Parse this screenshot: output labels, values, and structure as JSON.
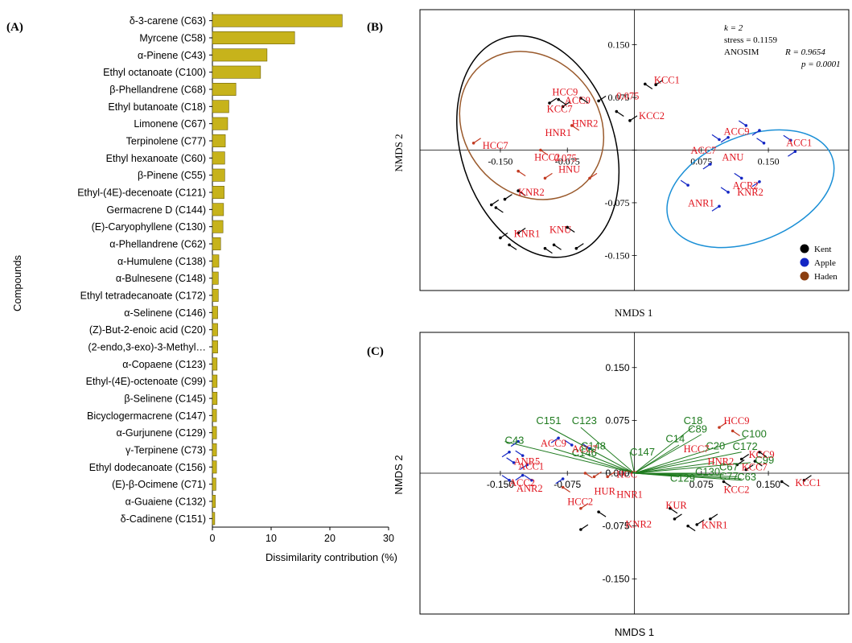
{
  "panels": {
    "a_label": "(A)",
    "b_label": "(B)",
    "c_label": "(C)"
  },
  "chart_data": [
    {
      "panel": "A",
      "type": "bar",
      "orientation": "horizontal",
      "ylabel": "Compounds",
      "xlabel": "Dissimilarity contribution (%)",
      "xlim": [
        0,
        30
      ],
      "xticks": [
        "0",
        "10",
        "20",
        "30"
      ],
      "bar_color": "#c7b31b",
      "categories": [
        "δ-3-carene (C63)",
        "Myrcene (C58)",
        "α-Pinene (C43)",
        "Ethyl octanoate (C100)",
        "β-Phellandrene (C68)",
        "Ethyl butanoate (C18)",
        "Limonene (C67)",
        "Terpinolene (C77)",
        "Ethyl hexanoate (C60)",
        "β-Pinene (C55)",
        "Ethyl-(4E)-decenoate (C121)",
        "Germacrene D (C144)",
        "(E)-Caryophyllene (C130)",
        "α-Phellandrene (C62)",
        "α-Humulene (C138)",
        "α-Bulnesene (C148)",
        "Ethyl tetradecanoate (C172)",
        "α-Selinene (C146)",
        "(Z)-But-2-enoic acid (C20)",
        "(2-endo,3-exo)-3-Methyl…",
        "α-Copaene (C123)",
        "Ethyl-(4E)-octenoate (C99)",
        "β-Selinene (C145)",
        "Bicyclogermacrene (C147)",
        "α-Gurjunene (C129)",
        "γ-Terpinene (C73)",
        "Ethyl dodecanoate (C156)",
        "(E)-β-Ocimene (C71)",
        "α-Guaiene (C132)",
        "δ-Cadinene (C151)"
      ],
      "values": [
        22.1,
        14.0,
        9.3,
        8.2,
        4.0,
        2.8,
        2.6,
        2.2,
        2.1,
        2.1,
        2.0,
        1.9,
        1.8,
        1.4,
        1.1,
        1.0,
        1.0,
        0.9,
        0.9,
        0.9,
        0.8,
        0.8,
        0.8,
        0.7,
        0.7,
        0.7,
        0.7,
        0.6,
        0.5,
        0.4
      ]
    },
    {
      "panel": "B",
      "type": "scatter",
      "xlabel": "NMDS 1",
      "ylabel": "NMDS 2",
      "xlim": [
        -0.24,
        0.24
      ],
      "ylim": [
        -0.2,
        0.2
      ],
      "xticks": [
        {
          "v": -0.15,
          "t": "-0.150"
        },
        {
          "v": -0.075,
          "t": "-0.075"
        },
        {
          "v": 0.075,
          "t": "0.075"
        },
        {
          "v": 0.15,
          "t": "0.150"
        }
      ],
      "yticks": [
        {
          "v": 0.15,
          "t": "0.150"
        },
        {
          "v": 0.075,
          "t": "0.075"
        },
        {
          "v": 0.0,
          "t": "0.000"
        },
        {
          "v": -0.075,
          "t": "-0.075"
        },
        {
          "v": -0.15,
          "t": "-0.150"
        }
      ],
      "stats": {
        "k": "k = 2",
        "stress": "stress = 0.1159",
        "anosim": "ANOSIM",
        "r": "R = 0.9654",
        "p": "p = 0.0001"
      },
      "legend": {
        "placement": "bottom-right",
        "items": [
          {
            "label": "Kent",
            "color": "#000000"
          },
          {
            "label": "Apple",
            "color": "#1326c4"
          },
          {
            "label": "Haden",
            "color": "#8b3e0f"
          }
        ]
      },
      "ellipses": [
        {
          "group": "Kent",
          "color": "#000000",
          "cx": -0.108,
          "cy": 0.005,
          "rx": 0.086,
          "ry": 0.162,
          "rot": -18
        },
        {
          "group": "Haden",
          "color": "#9a5a2c",
          "cx": -0.115,
          "cy": 0.035,
          "rx": 0.075,
          "ry": 0.112,
          "rot": -40
        },
        {
          "group": "Apple",
          "color": "#1a8fd6",
          "cx": 0.13,
          "cy": -0.055,
          "rx": 0.098,
          "ry": 0.075,
          "rot": -22
        }
      ],
      "groups": [
        {
          "group": "Kent",
          "color": "#000000",
          "points": [
            [
              -0.095,
              0.067
            ],
            [
              -0.085,
              0.072
            ],
            [
              -0.08,
              0.062
            ],
            [
              -0.06,
              0.074
            ],
            [
              -0.04,
              0.07
            ],
            [
              -0.02,
              0.055
            ],
            [
              -0.005,
              0.042
            ],
            [
              0.012,
              0.094
            ],
            [
              0.024,
              0.093
            ],
            [
              -0.155,
              -0.082
            ],
            [
              -0.145,
              -0.07
            ],
            [
              -0.13,
              -0.058
            ],
            [
              -0.16,
              -0.078
            ],
            [
              -0.09,
              -0.135
            ],
            [
              -0.065,
              -0.14
            ],
            [
              -0.1,
              -0.14
            ],
            [
              -0.15,
              -0.125
            ],
            [
              -0.14,
              -0.135
            ],
            [
              -0.13,
              -0.118
            ],
            [
              -0.075,
              -0.11
            ]
          ]
        },
        {
          "group": "Apple",
          "color": "#1326c4",
          "points": [
            [
              0.095,
              0.015
            ],
            [
              0.105,
              0.018
            ],
            [
              0.125,
              0.035
            ],
            [
              0.14,
              0.028
            ],
            [
              0.175,
              0.014
            ],
            [
              0.18,
              -0.002
            ],
            [
              0.12,
              -0.04
            ],
            [
              0.14,
              -0.045
            ],
            [
              0.105,
              -0.06
            ],
            [
              0.095,
              -0.08
            ],
            [
              0.06,
              -0.05
            ],
            [
              0.085,
              -0.02
            ],
            [
              0.145,
              0.01
            ]
          ]
        },
        {
          "group": "Haden",
          "color": "#c23b22",
          "points": [
            [
              -0.18,
              0.01
            ],
            [
              -0.13,
              -0.03
            ],
            [
              -0.1,
              -0.04
            ],
            [
              -0.07,
              0.035
            ],
            [
              -0.05,
              -0.04
            ],
            [
              -0.105,
              0.0
            ]
          ]
        }
      ],
      "labels": [
        {
          "t": "HCC9",
          "x": -0.092,
          "y": 0.078
        },
        {
          "t": "ACC9",
          "x": -0.078,
          "y": 0.066
        },
        {
          "t": "KCC7",
          "x": -0.098,
          "y": 0.054
        },
        {
          "t": "0.075",
          "x": -0.02,
          "y": 0.072
        },
        {
          "t": "KCC2",
          "x": 0.005,
          "y": 0.044
        },
        {
          "t": "KCC1",
          "x": 0.022,
          "y": 0.095
        },
        {
          "t": "HNR2",
          "x": -0.07,
          "y": 0.033
        },
        {
          "t": "HNR1",
          "x": -0.1,
          "y": 0.02
        },
        {
          "t": "HCC7",
          "x": -0.17,
          "y": 0.002
        },
        {
          "t": "HCC2",
          "x": -0.112,
          "y": -0.015
        },
        {
          "t": "0.075",
          "x": -0.09,
          "y": -0.016
        },
        {
          "t": "HNU",
          "x": -0.085,
          "y": -0.032
        },
        {
          "t": "KNR2",
          "x": -0.13,
          "y": -0.065
        },
        {
          "t": "KNR1",
          "x": -0.135,
          "y": -0.124
        },
        {
          "t": "KNU",
          "x": -0.095,
          "y": -0.118
        },
        {
          "t": "ACC9",
          "x": 0.1,
          "y": 0.022
        },
        {
          "t": "ACC1",
          "x": 0.17,
          "y": 0.006
        },
        {
          "t": "ACC7",
          "x": 0.063,
          "y": -0.005
        },
        {
          "t": "ANU",
          "x": 0.098,
          "y": -0.015
        },
        {
          "t": "ACR2",
          "x": 0.11,
          "y": -0.055
        },
        {
          "t": "KNR2",
          "x": 0.115,
          "y": -0.065
        },
        {
          "t": "ANR1",
          "x": 0.06,
          "y": -0.08
        }
      ]
    },
    {
      "panel": "C",
      "type": "scatter",
      "xlabel": "NMDS 1",
      "ylabel": "NMDS 2",
      "xlim": [
        -0.24,
        0.24
      ],
      "ylim": [
        -0.2,
        0.2
      ],
      "xticks": [
        {
          "v": -0.15,
          "t": "-0.150"
        },
        {
          "v": -0.075,
          "t": "-0.075"
        },
        {
          "v": 0.075,
          "t": "0.075"
        },
        {
          "v": 0.15,
          "t": "0.150"
        }
      ],
      "yticks": [
        {
          "v": 0.15,
          "t": "0.150"
        },
        {
          "v": 0.075,
          "t": "0.075"
        },
        {
          "v": 0.0,
          "t": "0.000"
        },
        {
          "v": -0.075,
          "t": "-0.075"
        },
        {
          "v": -0.15,
          "t": "-0.150"
        }
      ],
      "vectors": [
        {
          "t": "C151",
          "x": -0.095,
          "y": 0.065
        },
        {
          "t": "C123",
          "x": -0.06,
          "y": 0.065
        },
        {
          "t": "C43",
          "x": -0.145,
          "y": 0.045
        },
        {
          "t": "C18",
          "x": 0.065,
          "y": 0.065
        },
        {
          "t": "C89",
          "x": 0.075,
          "y": 0.055
        },
        {
          "t": "C100",
          "x": 0.125,
          "y": 0.05
        },
        {
          "t": "C147",
          "x": -0.005,
          "y": 0.03
        },
        {
          "t": "C14",
          "x": 0.05,
          "y": 0.04
        },
        {
          "t": "C20",
          "x": 0.095,
          "y": 0.03
        },
        {
          "t": "C172",
          "x": 0.12,
          "y": 0.03
        },
        {
          "t": "C63",
          "x": 0.12,
          "y": -0.01
        },
        {
          "t": "C67",
          "x": 0.1,
          "y": -0.002
        },
        {
          "t": "C129",
          "x": 0.05,
          "y": -0.005
        },
        {
          "t": "C130",
          "x": 0.07,
          "y": 0.0
        },
        {
          "t": "C99",
          "x": 0.13,
          "y": 0.015
        },
        {
          "t": "C77",
          "x": 0.115,
          "y": -0.005
        },
        {
          "t": "C75",
          "x": 0.12,
          "y": -0.008
        },
        {
          "t": "C134",
          "x": 0.09,
          "y": 0.015
        },
        {
          "t": "C148",
          "x": -0.06,
          "y": 0.03
        },
        {
          "t": "C146",
          "x": -0.09,
          "y": 0.035
        }
      ],
      "groups": [
        {
          "group": "Kent",
          "color": "#000000",
          "points": [
            [
              0.115,
              0.012
            ],
            [
              0.135,
              0.017
            ],
            [
              0.12,
              0.02
            ],
            [
              0.14,
              0.03
            ],
            [
              0.125,
              0.005
            ],
            [
              0.165,
              -0.012
            ],
            [
              0.19,
              -0.01
            ],
            [
              0.1,
              -0.012
            ],
            [
              0.085,
              -0.065
            ],
            [
              0.04,
              -0.05
            ],
            [
              0.045,
              -0.065
            ],
            [
              0.06,
              -0.075
            ],
            [
              0.07,
              -0.073
            ],
            [
              -0.04,
              -0.055
            ],
            [
              -0.06,
              -0.08
            ]
          ]
        },
        {
          "group": "Apple",
          "color": "#1326c4",
          "points": [
            [
              -0.07,
              0.04
            ],
            [
              -0.085,
              0.05
            ],
            [
              -0.05,
              0.035
            ],
            [
              -0.13,
              0.045
            ],
            [
              -0.125,
              0.025
            ],
            [
              -0.14,
              0.03
            ],
            [
              -0.135,
              0.015
            ],
            [
              -0.12,
              0.012
            ],
            [
              -0.14,
              -0.01
            ],
            [
              -0.125,
              -0.003
            ],
            [
              -0.115,
              -0.01
            ],
            [
              -0.08,
              -0.008
            ]
          ]
        },
        {
          "group": "Haden",
          "color": "#c23b22",
          "points": [
            [
              0.095,
              0.065
            ],
            [
              0.11,
              0.06
            ],
            [
              -0.06,
              -0.05
            ],
            [
              -0.055,
              0.0
            ],
            [
              -0.045,
              -0.005
            ],
            [
              -0.08,
              -0.02
            ],
            [
              -0.03,
              -0.005
            ]
          ]
        }
      ],
      "green_labels": [
        {
          "t": "C151",
          "x": -0.11,
          "y": 0.07
        },
        {
          "t": "C123",
          "x": -0.07,
          "y": 0.07
        },
        {
          "t": "C43",
          "x": -0.145,
          "y": 0.042
        },
        {
          "t": "C18",
          "x": 0.055,
          "y": 0.07
        },
        {
          "t": "C89",
          "x": 0.06,
          "y": 0.058
        },
        {
          "t": "C100",
          "x": 0.12,
          "y": 0.051
        },
        {
          "t": "C147",
          "x": -0.005,
          "y": 0.025
        },
        {
          "t": "C14",
          "x": 0.035,
          "y": 0.044
        },
        {
          "t": "C20",
          "x": 0.08,
          "y": 0.034
        },
        {
          "t": "C172",
          "x": 0.11,
          "y": 0.033
        },
        {
          "t": "C63",
          "x": 0.115,
          "y": -0.01
        },
        {
          "t": "C67",
          "x": 0.095,
          "y": 0.004
        },
        {
          "t": "C129",
          "x": 0.04,
          "y": -0.012
        },
        {
          "t": "C130",
          "x": 0.068,
          "y": -0.003
        },
        {
          "t": "C99",
          "x": 0.135,
          "y": 0.014
        },
        {
          "t": "C77",
          "x": 0.095,
          "y": -0.009
        },
        {
          "t": "C146",
          "x": -0.07,
          "y": 0.024
        },
        {
          "t": "C148",
          "x": -0.06,
          "y": 0.034
        }
      ],
      "red_labels": [
        {
          "t": "ACC9",
          "x": -0.105,
          "y": 0.038
        },
        {
          "t": "ACC7",
          "x": -0.07,
          "y": 0.03
        },
        {
          "t": "ANR5",
          "x": -0.135,
          "y": 0.012
        },
        {
          "t": "ACC1",
          "x": -0.13,
          "y": 0.005
        },
        {
          "t": "ACC2",
          "x": -0.14,
          "y": -0.018
        },
        {
          "t": "ANR2",
          "x": -0.132,
          "y": -0.026
        },
        {
          "t": "HCC9",
          "x": 0.1,
          "y": 0.07
        },
        {
          "t": "HCC7",
          "x": 0.055,
          "y": 0.03
        },
        {
          "t": "HNR2",
          "x": 0.082,
          "y": 0.012
        },
        {
          "t": "KCC9",
          "x": 0.128,
          "y": 0.022
        },
        {
          "t": "KCC7",
          "x": 0.12,
          "y": 0.004
        },
        {
          "t": "KCC2",
          "x": 0.1,
          "y": -0.028
        },
        {
          "t": "KCC1",
          "x": 0.18,
          "y": -0.018
        },
        {
          "t": "HCC",
          "x": -0.02,
          "y": -0.006
        },
        {
          "t": "HUR",
          "x": -0.045,
          "y": -0.03
        },
        {
          "t": "HNR1",
          "x": -0.02,
          "y": -0.035
        },
        {
          "t": "HCC2",
          "x": -0.075,
          "y": -0.045
        },
        {
          "t": "KUR",
          "x": 0.035,
          "y": -0.05
        },
        {
          "t": "KNR2",
          "x": -0.01,
          "y": -0.077
        },
        {
          "t": "KNR1",
          "x": 0.075,
          "y": -0.078
        }
      ]
    }
  ]
}
